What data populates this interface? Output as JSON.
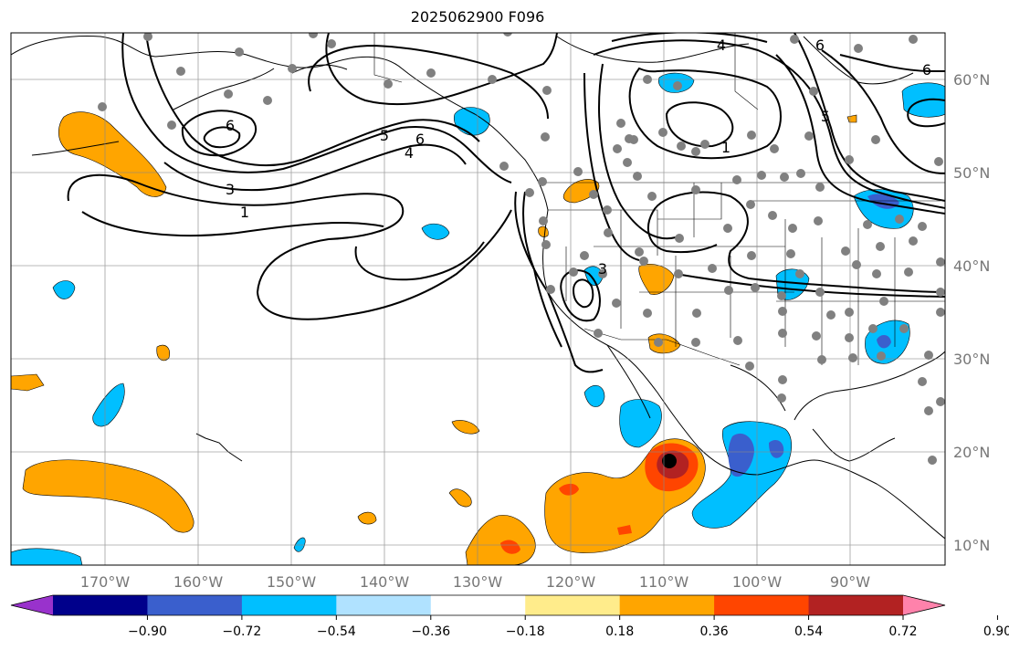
{
  "title": "2025062900 F096",
  "lon_labels": [
    "170°W",
    "160°W",
    "150°W",
    "140°W",
    "130°W",
    "120°W",
    "110°W",
    "100°W",
    "90°W"
  ],
  "lat_labels": [
    "60°N",
    "50°N",
    "40°N",
    "30°N",
    "20°N",
    "10°N"
  ],
  "colorbar": {
    "colors": [
      "#9932cc",
      "#00008b",
      "#3a5fcd",
      "#00bfff",
      "#b0e2ff",
      "#ffffff",
      "#ffec8b",
      "#ffa500",
      "#ff4500",
      "#b22222",
      "#ff82ab"
    ],
    "ticks": [
      "−0.90",
      "−0.72",
      "−0.54",
      "−0.36",
      "−0.18",
      "0.18",
      "0.36",
      "0.54",
      "0.72",
      "0.90"
    ]
  },
  "contour_labels": [
    "6",
    "5",
    "6",
    "4",
    "3",
    "1",
    "4",
    "1",
    "5",
    "6",
    "6",
    "3"
  ]
}
